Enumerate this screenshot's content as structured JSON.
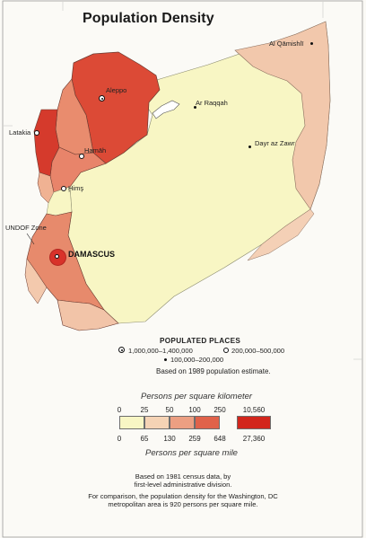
{
  "title": "Population Density",
  "places": {
    "capital": "DAMASCUS",
    "aleppo": "Aleppo",
    "hamah": "Hamāh",
    "hims": "Ḩimş",
    "latakia": "Latakia",
    "ar_raqqah": "Ar Raqqah",
    "dayr_az_zawr": "Dayr az Zawr",
    "al_qamishli": "Al Qāmishlī",
    "undof": "UNDOF Zone"
  },
  "legend": {
    "heading": "POPULATED PLACES",
    "tier1": "1,000,000–1,400,000",
    "tier2": "200,000–500,000",
    "tier3": "100,000–200,000",
    "estimate_note": "Based on 1989 population estimate.",
    "km_caption": "Persons per square kilometer",
    "mi_caption": "Persons per square mile",
    "km_ticks": [
      "0",
      "25",
      "50",
      "100",
      "250",
      "10,560"
    ],
    "mi_ticks": [
      "0",
      "65",
      "130",
      "259",
      "648",
      "27,360"
    ],
    "colors": [
      "#f8f6c4",
      "#f5d3b5",
      "#ec9f82",
      "#e0624a",
      "#d2261c"
    ]
  },
  "source": {
    "line1": "Based on 1981 census data, by",
    "line2": "first-level administrative division.",
    "line3": "For comparison, the population density for the Washington, DC",
    "line4": "metropolitan area is 920 persons per square mile."
  }
}
